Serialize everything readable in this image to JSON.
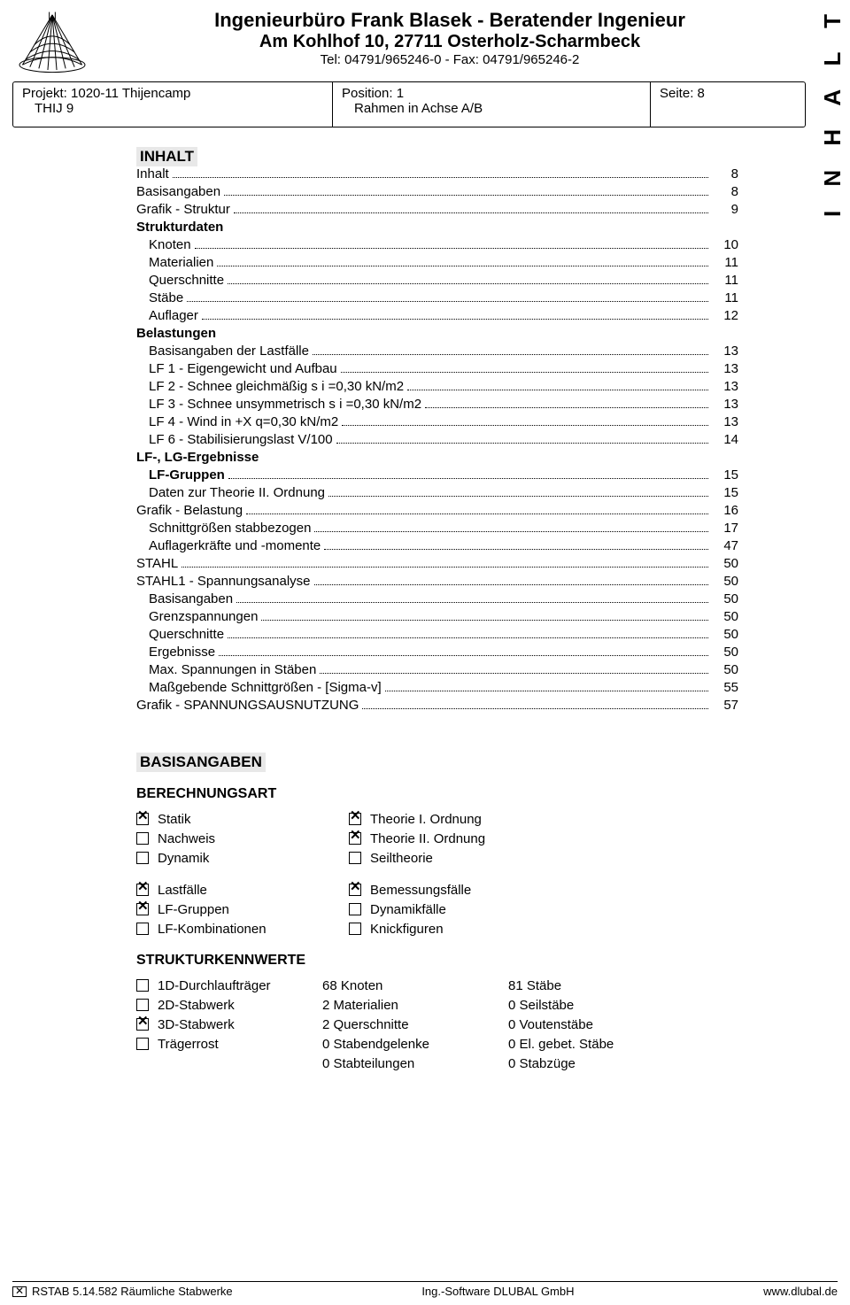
{
  "sidebar": "I N H A L T",
  "header": {
    "line1": "Ingenieurbüro Frank Blasek - Beratender Ingenieur",
    "line2": "Am Kohlhof 10, 27711 Osterholz-Scharmbeck",
    "line3": "Tel: 04791/965246-0 - Fax: 04791/965246-2"
  },
  "meta": {
    "projekt": "Projekt: 1020-11 Thijencamp",
    "code": "THIJ 9",
    "position": "Position: 1",
    "subtitle": "Rahmen in Achse A/B",
    "seite": "Seite: 8"
  },
  "toc_title": "INHALT",
  "toc": [
    {
      "label": "Inhalt",
      "page": "8",
      "bold": false,
      "indent": 0,
      "dots": true
    },
    {
      "label": "Basisangaben",
      "page": "8",
      "bold": false,
      "indent": 0,
      "dots": true
    },
    {
      "label": "Grafik - Struktur",
      "page": "9",
      "bold": false,
      "indent": 0,
      "dots": true
    },
    {
      "label": "Strukturdaten",
      "page": "",
      "bold": true,
      "indent": 0,
      "dots": false
    },
    {
      "label": "Knoten",
      "page": "10",
      "bold": false,
      "indent": 1,
      "dots": true
    },
    {
      "label": "Materialien",
      "page": "11",
      "bold": false,
      "indent": 1,
      "dots": true
    },
    {
      "label": "Querschnitte",
      "page": "11",
      "bold": false,
      "indent": 1,
      "dots": true
    },
    {
      "label": "Stäbe",
      "page": "11",
      "bold": false,
      "indent": 1,
      "dots": true
    },
    {
      "label": "Auflager",
      "page": "12",
      "bold": false,
      "indent": 1,
      "dots": true
    },
    {
      "label": "Belastungen",
      "page": "",
      "bold": true,
      "indent": 0,
      "dots": false
    },
    {
      "label": "Basisangaben der Lastfälle",
      "page": "13",
      "bold": false,
      "indent": 1,
      "dots": true
    },
    {
      "label": "LF 1 - Eigengewicht und Aufbau",
      "page": "13",
      "bold": false,
      "indent": 1,
      "dots": true
    },
    {
      "label": "LF 2 - Schnee gleichmäßig s i =0,30 kN/m2",
      "page": "13",
      "bold": false,
      "indent": 1,
      "dots": true
    },
    {
      "label": "LF 3 - Schnee unsymmetrisch s i =0,30 kN/m2",
      "page": "13",
      "bold": false,
      "indent": 1,
      "dots": true
    },
    {
      "label": "LF 4 - Wind in +X q=0,30 kN/m2",
      "page": "13",
      "bold": false,
      "indent": 1,
      "dots": true
    },
    {
      "label": "LF 6 - Stabilisierungslast V/100",
      "page": "14",
      "bold": false,
      "indent": 1,
      "dots": true
    },
    {
      "label": "LF-, LG-Ergebnisse",
      "page": "",
      "bold": true,
      "indent": 0,
      "dots": false
    },
    {
      "label": "LF-Gruppen",
      "page": "15",
      "bold": true,
      "indent": 1,
      "dots": true
    },
    {
      "label": "Daten zur Theorie II. Ordnung",
      "page": "15",
      "bold": false,
      "indent": 1,
      "dots": true
    },
    {
      "label": "Grafik -  Belastung",
      "page": "16",
      "bold": false,
      "indent": 0,
      "dots": true
    },
    {
      "label": "Schnittgrößen stabbezogen",
      "page": "17",
      "bold": false,
      "indent": 1,
      "dots": true
    },
    {
      "label": "Auflagerkräfte und -momente",
      "page": "47",
      "bold": false,
      "indent": 1,
      "dots": true
    },
    {
      "label": "STAHL",
      "page": "50",
      "bold": false,
      "indent": 0,
      "dots": true
    },
    {
      "label": "STAHL1 - Spannungsanalyse",
      "page": "50",
      "bold": false,
      "indent": 0,
      "dots": true
    },
    {
      "label": "Basisangaben",
      "page": "50",
      "bold": false,
      "indent": 1,
      "dots": true
    },
    {
      "label": "Grenzspannungen",
      "page": "50",
      "bold": false,
      "indent": 1,
      "dots": true
    },
    {
      "label": "Querschnitte",
      "page": "50",
      "bold": false,
      "indent": 1,
      "dots": true
    },
    {
      "label": "Ergebnisse",
      "page": "50",
      "bold": false,
      "indent": 1,
      "dots": true
    },
    {
      "label": "Max. Spannungen in Stäben",
      "page": "50",
      "bold": false,
      "indent": 1,
      "dots": true
    },
    {
      "label": "Maßgebende Schnittgrößen - [Sigma-v]",
      "page": "55",
      "bold": false,
      "indent": 1,
      "dots": true
    },
    {
      "label": "Grafik -  SPANNUNGSAUSNUTZUNG",
      "page": "57",
      "bold": false,
      "indent": 0,
      "dots": true
    }
  ],
  "basis_title": "BASISANGABEN",
  "berech_title": "BERECHNUNGSART",
  "cb_group1_left": [
    {
      "label": "Statik",
      "checked": true
    },
    {
      "label": "Nachweis",
      "checked": false
    },
    {
      "label": "Dynamik",
      "checked": false
    }
  ],
  "cb_group1_right": [
    {
      "label": "Theorie I. Ordnung",
      "checked": true
    },
    {
      "label": "Theorie II. Ordnung",
      "checked": true
    },
    {
      "label": "Seiltheorie",
      "checked": false
    }
  ],
  "cb_group2_left": [
    {
      "label": "Lastfälle",
      "checked": true
    },
    {
      "label": "LF-Gruppen",
      "checked": true
    },
    {
      "label": "LF-Kombinationen",
      "checked": false
    }
  ],
  "cb_group2_right": [
    {
      "label": "Bemessungsfälle",
      "checked": true
    },
    {
      "label": "Dynamikfälle",
      "checked": false
    },
    {
      "label": "Knickfiguren",
      "checked": false
    }
  ],
  "struct_title": "STRUKTURKENNWERTE",
  "struct_left": [
    {
      "label": "1D-Durchlaufträger",
      "checked": false
    },
    {
      "label": "2D-Stabwerk",
      "checked": false
    },
    {
      "label": "3D-Stabwerk",
      "checked": true
    },
    {
      "label": "Trägerrost",
      "checked": false
    }
  ],
  "struct_mid": [
    "68 Knoten",
    "2 Materialien",
    "2 Querschnitte",
    "0 Stabendgelenke",
    "0 Stabteilungen"
  ],
  "struct_right": [
    "81 Stäbe",
    "0 Seilstäbe",
    "0 Voutenstäbe",
    "0 El. gebet. Stäbe",
    "0 Stabzüge"
  ],
  "footer": {
    "left": "RSTAB 5.14.582 Räumliche Stabwerke",
    "mid": "Ing.-Software DLUBAL GmbH",
    "right": "www.dlubal.de"
  }
}
